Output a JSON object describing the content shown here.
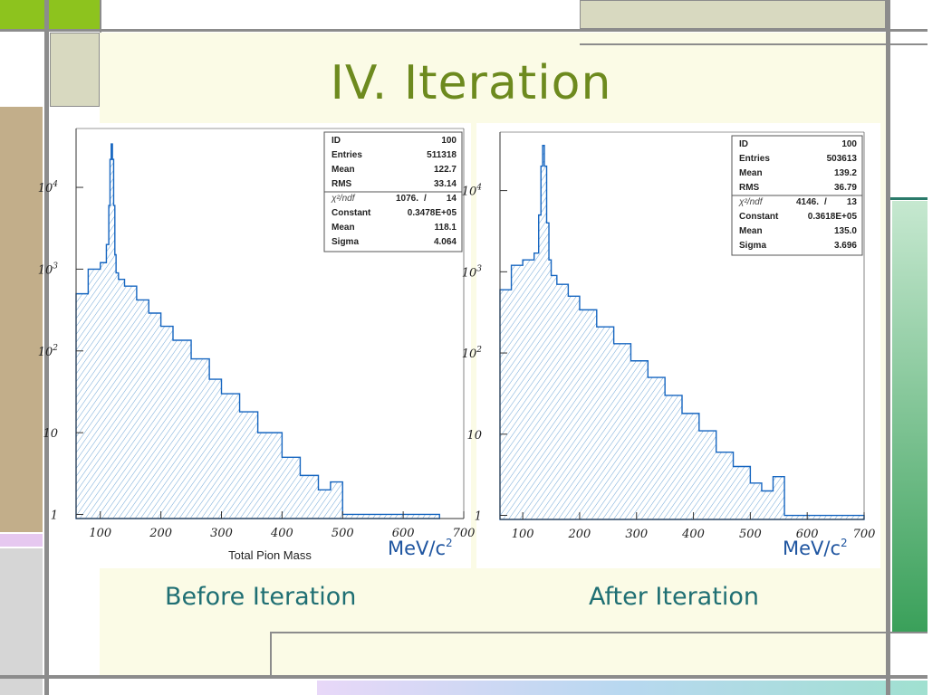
{
  "slide": {
    "title": "IV.  Iteration",
    "colors": {
      "title": "#6d8a1e",
      "caption": "#1f6f73",
      "unit": "#1f55a0",
      "histogram": "#1565c0",
      "fill_hatch": "#6fa6d6"
    }
  },
  "charts": [
    {
      "caption": "Before Iteration",
      "xlabel": "Total Pion Mass",
      "unit": "MeV/c",
      "unit_sup": "2",
      "stats_box": [
        {
          "label": "ID",
          "value": "100"
        },
        {
          "label": "Entries",
          "value": "511318"
        },
        {
          "label": "Mean",
          "value": "122.7"
        },
        {
          "label": "RMS",
          "value": "33.14"
        }
      ],
      "fit_box": {
        "chi2_label": "χ²/ndf",
        "chi2_value": "1076.",
        "ndf": "14",
        "rows": [
          {
            "label": "Constant",
            "value": "0.3478E+05"
          },
          {
            "label": "Mean",
            "value": "118.1"
          },
          {
            "label": "Sigma",
            "value": "4.064"
          }
        ]
      }
    },
    {
      "caption": "After Iteration",
      "xlabel": "",
      "unit": "MeV/c",
      "unit_sup": "2",
      "stats_box": [
        {
          "label": "ID",
          "value": "100"
        },
        {
          "label": "Entries",
          "value": "503613"
        },
        {
          "label": "Mean",
          "value": "139.2"
        },
        {
          "label": "RMS",
          "value": "36.79"
        }
      ],
      "fit_box": {
        "chi2_label": "χ²/ndf",
        "chi2_value": "4146.",
        "ndf": "13",
        "rows": [
          {
            "label": "Constant",
            "value": "0.3618E+05"
          },
          {
            "label": "Mean",
            "value": "135.0"
          },
          {
            "label": "Sigma",
            "value": "3.696"
          }
        ]
      }
    }
  ],
  "chart_data": [
    {
      "type": "area",
      "xlim": [
        60,
        700
      ],
      "ylog": true,
      "y_ticks": [
        {
          "value": 1,
          "label": "1"
        },
        {
          "value": 10,
          "label": "10"
        },
        {
          "value": 100,
          "label": "10 2"
        },
        {
          "value": 1000,
          "label": "10 3"
        },
        {
          "value": 10000,
          "label": "10 4"
        }
      ],
      "x_ticks": [
        "100",
        "200",
        "300",
        "400",
        "500",
        "600",
        "700"
      ],
      "x_tick_values": [
        100,
        200,
        300,
        400,
        500,
        600,
        700
      ],
      "series": [
        {
          "x": [
            60,
            80,
            100,
            110,
            114,
            116,
            118,
            120,
            122,
            124,
            126,
            130,
            140,
            160,
            180,
            200,
            220,
            250,
            280,
            300,
            330,
            360,
            400,
            430,
            460,
            480,
            500,
            520,
            540,
            560,
            580,
            600,
            620,
            640
          ],
          "y": [
            500,
            1000,
            1200,
            2000,
            6000,
            22000,
            34000,
            22000,
            6000,
            1500,
            900,
            750,
            620,
            420,
            290,
            200,
            135,
            80,
            45,
            30,
            18,
            10,
            5,
            3,
            2,
            2.5,
            1,
            1,
            1,
            1,
            1,
            1,
            1,
            1
          ]
        }
      ]
    },
    {
      "type": "area",
      "xlim": [
        60,
        700
      ],
      "ylog": true,
      "y_ticks": [
        {
          "value": 1,
          "label": "1"
        },
        {
          "value": 10,
          "label": "10"
        },
        {
          "value": 100,
          "label": "10 2"
        },
        {
          "value": 1000,
          "label": "10 3"
        },
        {
          "value": 10000,
          "label": "10 4"
        }
      ],
      "x_ticks": [
        "100",
        "200",
        "300",
        "400",
        "500",
        "600",
        "700"
      ],
      "x_tick_values": [
        100,
        200,
        300,
        400,
        500,
        600,
        700
      ],
      "series": [
        {
          "x": [
            60,
            80,
            100,
            120,
            128,
            132,
            135,
            138,
            142,
            146,
            150,
            160,
            180,
            200,
            230,
            260,
            290,
            320,
            350,
            380,
            410,
            440,
            470,
            500,
            520,
            540,
            560,
            580,
            600,
            620,
            640,
            660,
            680,
            700
          ],
          "y": [
            600,
            1200,
            1400,
            1700,
            5000,
            20000,
            36000,
            20000,
            4000,
            1400,
            900,
            700,
            500,
            340,
            210,
            130,
            80,
            50,
            30,
            18,
            11,
            6,
            4,
            2.5,
            2,
            3,
            1,
            1,
            1,
            1,
            1,
            1,
            1,
            1
          ]
        }
      ]
    }
  ]
}
